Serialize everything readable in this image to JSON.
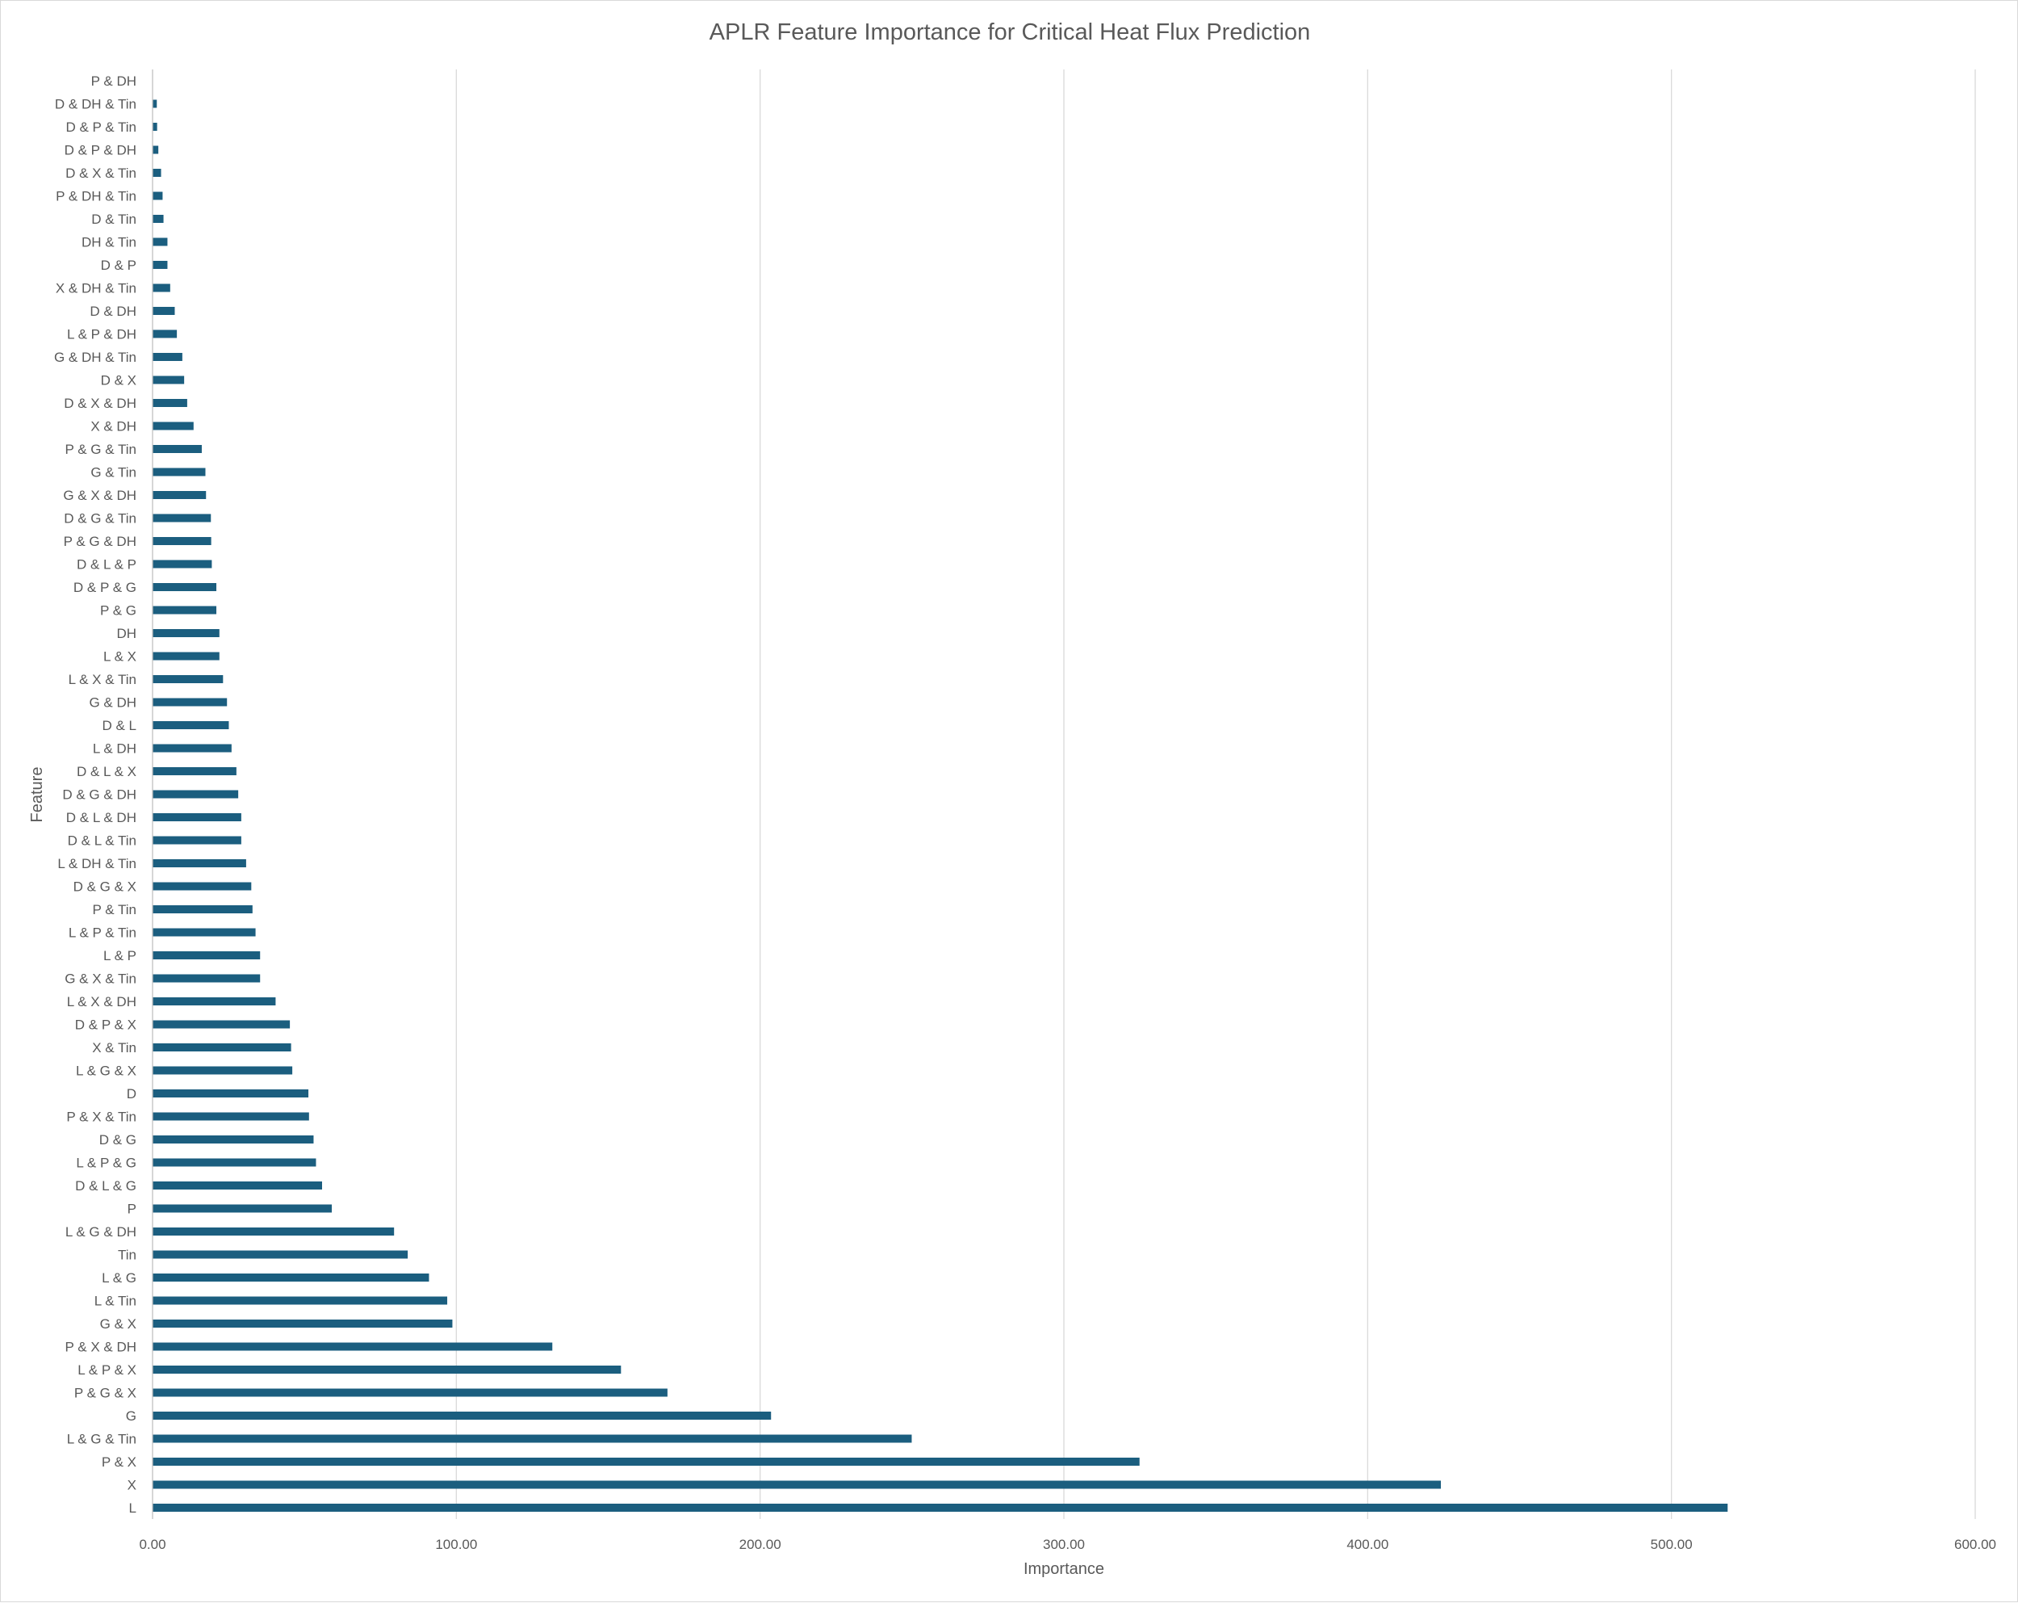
{
  "chart_data": {
    "type": "bar",
    "orientation": "horizontal",
    "title": "APLR Feature Importance for Critical Heat Flux Prediction",
    "xlabel": "Importance",
    "ylabel": "Feature",
    "xlim": [
      0,
      600
    ],
    "xticks": [
      "0.00",
      "100.00",
      "200.00",
      "300.00",
      "400.00",
      "500.00",
      "600.00"
    ],
    "grid": true,
    "legend": "none",
    "bar_color": "#1b5e7f",
    "categories": [
      "L",
      "X",
      "P & X",
      "L & G & Tin",
      "G",
      "P & G & X",
      "L & P & X",
      "P & X & DH",
      "G & X",
      "L & Tin",
      "L & G",
      "Tin",
      "L & G & DH",
      "P",
      "D & L & G",
      "L & P & G",
      "D & G",
      "P & X & Tin",
      "D",
      "L & G & X",
      "X & Tin",
      "D & P & X",
      "L & X & DH",
      "G & X & Tin",
      "L & P",
      "L & P & Tin",
      "P & Tin",
      "D & G & X",
      "L & DH & Tin",
      "D & L & Tin",
      "D & L & DH",
      "D & G & DH",
      "D & L & X",
      "L & DH",
      "D & L",
      "G & DH",
      "L & X & Tin",
      "L & X",
      "DH",
      "P & G",
      "D & P & G",
      "D & L & P",
      "P & G & DH",
      "D & G & Tin",
      "G & X & DH",
      "G & Tin",
      "P & G & Tin",
      "X & DH",
      "D & X & DH",
      "D & X",
      "G & DH & Tin",
      "L & P & DH",
      "D & DH",
      "X & DH & Tin",
      "D & P",
      "DH & Tin",
      "D & Tin",
      "P & DH & Tin",
      "D & X & Tin",
      "D & P & DH",
      "D & P & Tin",
      "D & DH & Tin",
      "P & DH"
    ],
    "values": [
      518.5,
      424.1,
      324.9,
      249.9,
      203.6,
      169.5,
      154.2,
      131.6,
      98.7,
      97.0,
      91.0,
      84.0,
      79.5,
      59.0,
      55.8,
      53.8,
      53.0,
      51.5,
      51.3,
      46.0,
      45.6,
      45.2,
      40.5,
      35.4,
      35.4,
      33.9,
      32.9,
      32.5,
      30.8,
      29.2,
      29.2,
      28.2,
      27.6,
      26.0,
      25.1,
      24.5,
      23.2,
      22.0,
      22.0,
      21.0,
      21.0,
      19.5,
      19.3,
      19.2,
      17.6,
      17.4,
      16.2,
      13.5,
      11.4,
      10.4,
      9.8,
      8.0,
      7.3,
      5.8,
      4.9,
      4.9,
      3.6,
      3.3,
      2.8,
      1.9,
      1.5,
      1.4,
      0.0
    ]
  }
}
